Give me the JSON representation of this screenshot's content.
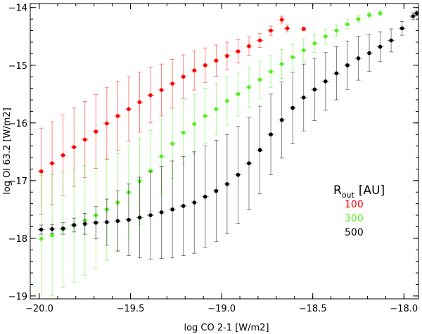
{
  "chart_data": {
    "type": "scatter",
    "title": "",
    "xlabel": "log CO 2-1 [W/m2]",
    "ylabel": "log OI 63.2 [W/m2]",
    "xlim": [
      -20.05,
      -17.92
    ],
    "ylim": [
      -19.05,
      -13.93
    ],
    "xticks": [
      -20.0,
      -19.5,
      -19.0,
      -18.5,
      -18.0
    ],
    "xtick_labels": [
      "−20.0",
      "−19.5",
      "−19.0",
      "−18.5",
      "−18.0"
    ],
    "yticks": [
      -19,
      -18,
      -17,
      -16,
      -15,
      -14
    ],
    "ytick_labels": [
      "−19",
      "−18",
      "−17",
      "−16",
      "−15",
      "−14"
    ],
    "grid": false,
    "legend": {
      "placement": "right",
      "title_main": "R",
      "title_sub": "out",
      "title_unit": "[AU]"
    },
    "series": [
      {
        "name": "100",
        "color": "#ff0000",
        "x": [
          -19.99,
          -19.93,
          -19.87,
          -19.81,
          -19.75,
          -19.69,
          -19.63,
          -19.57,
          -19.51,
          -19.45,
          -19.39,
          -19.33,
          -19.27,
          -19.21,
          -19.15,
          -19.09,
          -19.03,
          -18.97,
          -18.91,
          -18.85,
          -18.79,
          -18.73,
          -18.67,
          -18.64,
          -18.55
        ],
        "y": [
          -16.84,
          -16.7,
          -16.56,
          -16.42,
          -16.29,
          -16.15,
          -16.01,
          -15.88,
          -15.76,
          -15.64,
          -15.52,
          -15.43,
          -15.32,
          -15.2,
          -15.09,
          -15.0,
          -14.92,
          -14.84,
          -14.76,
          -14.67,
          -14.57,
          -14.4,
          -14.21,
          -14.36,
          -14.37
        ],
        "err": [
          0.75,
          0.72,
          0.7,
          0.68,
          0.66,
          0.64,
          0.62,
          0.6,
          0.56,
          0.52,
          0.48,
          0.45,
          0.42,
          0.38,
          0.34,
          0.3,
          0.27,
          0.24,
          0.2,
          0.16,
          0.12,
          0.08,
          0.06,
          0.06,
          0.03
        ]
      },
      {
        "name": "300",
        "color": "#55ee22",
        "x": [
          -19.99,
          -19.93,
          -19.87,
          -19.81,
          -19.75,
          -19.69,
          -19.63,
          -19.57,
          -19.51,
          -19.45,
          -19.39,
          -19.33,
          -19.27,
          -19.21,
          -19.15,
          -19.09,
          -19.03,
          -18.97,
          -18.91,
          -18.85,
          -18.79,
          -18.73,
          -18.67,
          -18.61,
          -18.55,
          -18.49,
          -18.43,
          -18.37,
          -18.31,
          -18.25,
          -18.19,
          -18.13
        ],
        "y": [
          -18.01,
          -17.95,
          -17.85,
          -17.78,
          -17.69,
          -17.6,
          -17.5,
          -17.38,
          -17.2,
          -17.01,
          -16.83,
          -16.58,
          -16.36,
          -16.17,
          -16.02,
          -15.88,
          -15.76,
          -15.62,
          -15.5,
          -15.38,
          -15.25,
          -15.11,
          -14.98,
          -14.86,
          -14.74,
          -14.62,
          -14.5,
          -14.4,
          -14.29,
          -14.2,
          -14.13,
          -14.1
        ],
        "err": [
          1.1,
          1.05,
          1.0,
          0.98,
          0.95,
          0.92,
          0.88,
          0.85,
          0.8,
          0.75,
          0.7,
          0.65,
          0.6,
          0.55,
          0.52,
          0.48,
          0.45,
          0.42,
          0.38,
          0.35,
          0.32,
          0.28,
          0.25,
          0.22,
          0.19,
          0.16,
          0.13,
          0.1,
          0.08,
          0.06,
          0.05,
          0.04
        ]
      },
      {
        "name": "500",
        "color": "#000000",
        "x": [
          -19.99,
          -19.93,
          -19.87,
          -19.81,
          -19.75,
          -19.69,
          -19.63,
          -19.57,
          -19.51,
          -19.45,
          -19.39,
          -19.33,
          -19.27,
          -19.21,
          -19.15,
          -19.09,
          -19.03,
          -18.97,
          -18.91,
          -18.85,
          -18.79,
          -18.73,
          -18.67,
          -18.61,
          -18.55,
          -18.49,
          -18.43,
          -18.37,
          -18.31,
          -18.25,
          -18.19,
          -18.13,
          -18.07,
          -18.01,
          -17.95,
          -17.93
        ],
        "y": [
          -17.85,
          -17.84,
          -17.83,
          -17.77,
          -17.75,
          -17.73,
          -17.72,
          -17.7,
          -17.68,
          -17.64,
          -17.6,
          -17.55,
          -17.5,
          -17.44,
          -17.38,
          -17.28,
          -17.18,
          -17.06,
          -16.9,
          -16.7,
          -16.47,
          -16.2,
          -15.95,
          -15.74,
          -15.56,
          -15.42,
          -15.28,
          -15.14,
          -15.0,
          -14.88,
          -14.79,
          -14.68,
          -14.57,
          -14.36,
          -14.15,
          -14.1
        ],
        "err": [
          0.08,
          0.08,
          0.1,
          0.12,
          0.18,
          0.28,
          0.4,
          0.52,
          0.62,
          0.7,
          0.76,
          0.8,
          0.84,
          0.86,
          0.88,
          0.88,
          0.88,
          0.86,
          0.84,
          0.8,
          0.76,
          0.7,
          0.66,
          0.62,
          0.58,
          0.54,
          0.5,
          0.46,
          0.42,
          0.38,
          0.32,
          0.26,
          0.2,
          0.12,
          0.06,
          0.04
        ]
      }
    ]
  }
}
